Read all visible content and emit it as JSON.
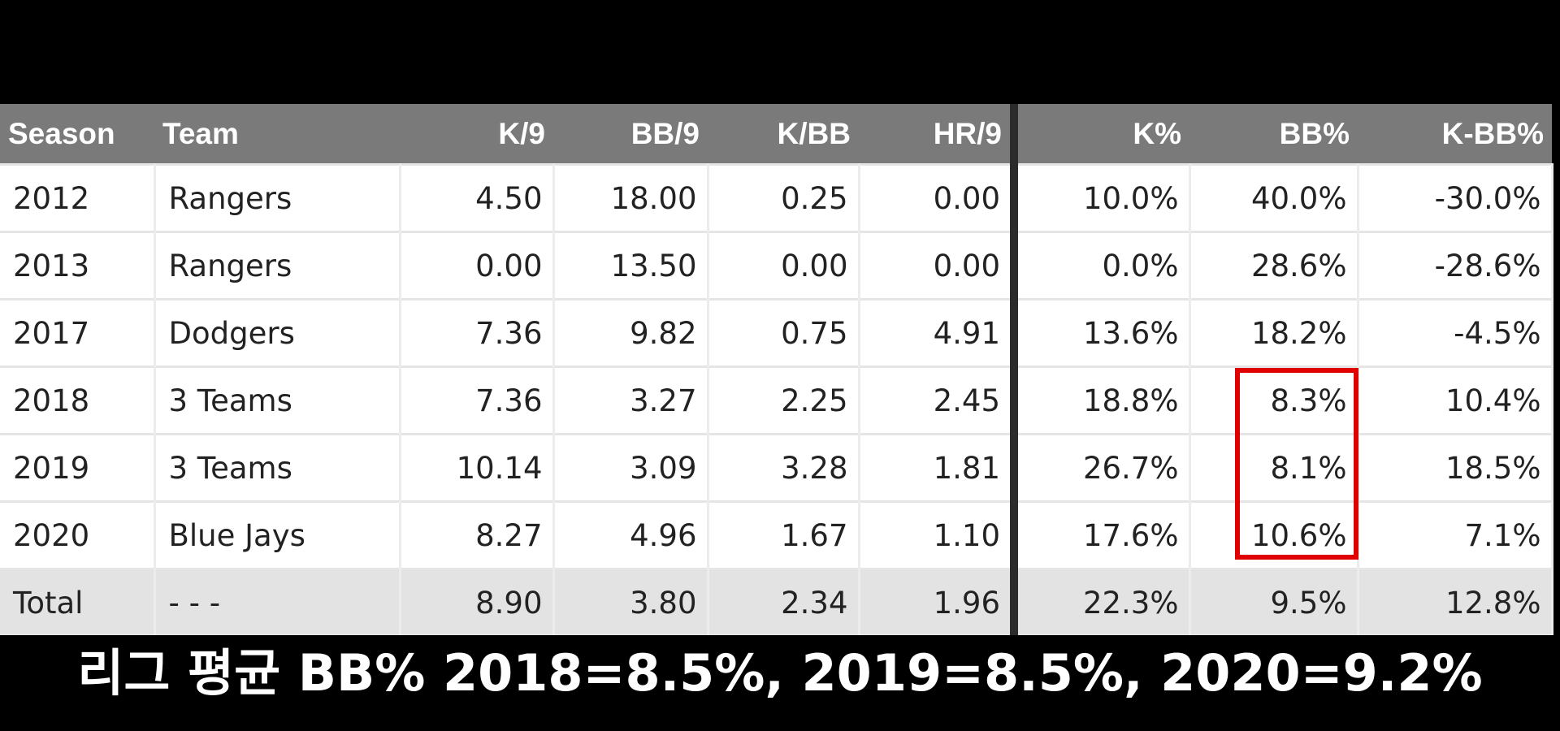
{
  "table": {
    "headers": [
      "Season",
      "Team",
      "K/9",
      "BB/9",
      "K/BB",
      "HR/9",
      "K%",
      "BB%",
      "K-BB%"
    ],
    "rows": [
      [
        "2012",
        "Rangers",
        "4.50",
        "18.00",
        "0.25",
        "0.00",
        "10.0%",
        "40.0%",
        "-30.0%"
      ],
      [
        "2013",
        "Rangers",
        "0.00",
        "13.50",
        "0.00",
        "0.00",
        "0.0%",
        "28.6%",
        "-28.6%"
      ],
      [
        "2017",
        "Dodgers",
        "7.36",
        "9.82",
        "0.75",
        "4.91",
        "13.6%",
        "18.2%",
        "-4.5%"
      ],
      [
        "2018",
        "3 Teams",
        "7.36",
        "3.27",
        "2.25",
        "2.45",
        "18.8%",
        "8.3%",
        "10.4%"
      ],
      [
        "2019",
        "3 Teams",
        "10.14",
        "3.09",
        "3.28",
        "1.81",
        "26.7%",
        "8.1%",
        "18.5%"
      ],
      [
        "2020",
        "Blue Jays",
        "8.27",
        "4.96",
        "1.67",
        "1.10",
        "17.6%",
        "10.6%",
        "7.1%"
      ]
    ],
    "total": [
      "Total",
      "- - -",
      "8.90",
      "3.80",
      "2.34",
      "1.96",
      "22.3%",
      "9.5%",
      "12.8%"
    ]
  },
  "highlight": {
    "column": "BB%",
    "seasons": [
      "2018",
      "2019",
      "2020"
    ],
    "color": "#e00000"
  },
  "caption": "리그 평균 BB% 2018=8.5%, 2019=8.5%, 2020=9.2%",
  "colors": {
    "header_bg": "#7a7a7a",
    "total_bg": "#e3e3e3",
    "background": "#000000"
  }
}
